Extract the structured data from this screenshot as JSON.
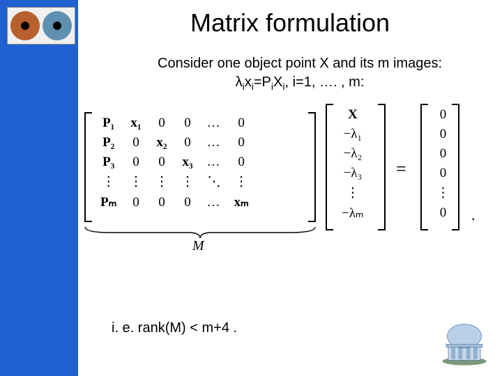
{
  "title": "Matrix formulation",
  "subtitle_line1": "Consider one object point X and its m images:",
  "subtitle_line2_html": "λ<sub>i</sub>x<sub>i</sub>=P<sub>i</sub>X<sub>i</sub>, i=1, …. , m:",
  "matrix_M": {
    "rows": [
      [
        "P₁",
        "x₁",
        "0",
        "0",
        "…",
        "0"
      ],
      [
        "P₂",
        "0",
        "x₂",
        "0",
        "…",
        "0"
      ],
      [
        "P₃",
        "0",
        "0",
        "x₃",
        "…",
        "0"
      ],
      [
        "⋮",
        "⋮",
        "⋮",
        "⋮",
        "⋱",
        "⋮"
      ],
      [
        "Pₘ",
        "0",
        "0",
        "0",
        "…",
        "xₘ"
      ]
    ],
    "bold_cols": [
      0
    ],
    "bold_cells": [
      [
        0,
        1
      ],
      [
        1,
        2
      ],
      [
        2,
        3
      ],
      [
        4,
        5
      ]
    ]
  },
  "vector_X": [
    "X",
    "−λ₁",
    "−λ₂",
    "−λ₃",
    "⋮",
    "−λₘ"
  ],
  "vector_zero": [
    "0",
    "0",
    "0",
    "0",
    "⋮",
    "0"
  ],
  "equals": "=",
  "brace_label": "M",
  "period": ".",
  "conclusion": "i. e. rank(M) < m+4  .",
  "colors": {
    "sidebar": "#2060d0",
    "background": "#ffffff",
    "text": "#000000",
    "eye1": "#b86030",
    "eye2": "#6090b0"
  },
  "fontsize": {
    "title": 36,
    "body": 20,
    "matrix": 19
  }
}
